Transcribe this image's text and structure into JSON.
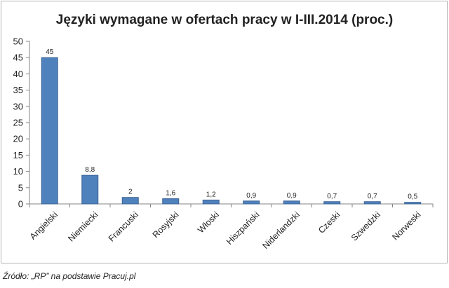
{
  "chart_data": {
    "type": "bar",
    "title": "Języki wymagane w ofertach pracy w I-III.2014 (proc.)",
    "xlabel": "",
    "ylabel": "",
    "categories": [
      "Angielski",
      "Niemiecki",
      "Francuski",
      "Rosyjski",
      "Włoski",
      "Hiszpański",
      "Niderlandzki",
      "Czeski",
      "Szwedzki",
      "Norweski"
    ],
    "values": [
      45,
      8.8,
      2,
      1.6,
      1.2,
      0.9,
      0.9,
      0.7,
      0.7,
      0.5
    ],
    "data_labels": [
      "45",
      "8,8",
      "2",
      "1,6",
      "1,2",
      "0,9",
      "0,9",
      "0,7",
      "0,7",
      "0,5"
    ],
    "ylim": [
      0,
      50
    ],
    "yticks": [
      0,
      5,
      10,
      15,
      20,
      25,
      30,
      35,
      40,
      45,
      50
    ],
    "grid": false,
    "legend": "none",
    "colors": {
      "bar_fill": "#4f81bd",
      "bar_stroke": "#3a6394",
      "axis": "#868686"
    }
  },
  "source_note": "Źródło: „RP” na podstawie  Pracuj.pl"
}
